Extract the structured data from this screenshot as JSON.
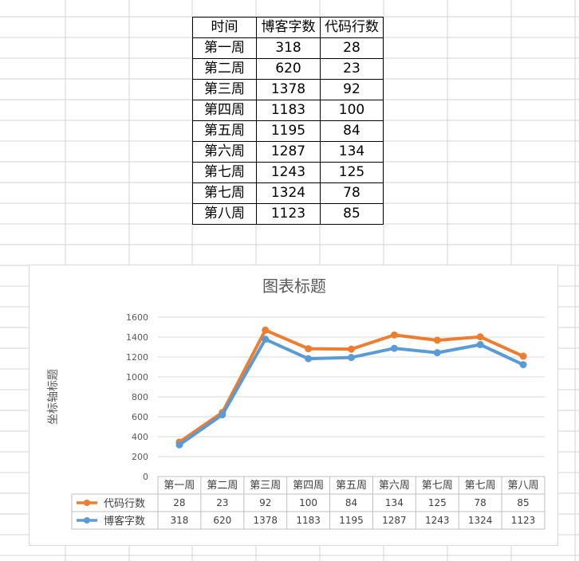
{
  "table": {
    "headers": [
      "时间",
      "博客字数",
      "代码行数"
    ],
    "rows": [
      [
        "第一周",
        "318",
        "28"
      ],
      [
        "第二周",
        "620",
        "23"
      ],
      [
        "第三周",
        "1378",
        "92"
      ],
      [
        "第四周",
        "1183",
        "100"
      ],
      [
        "第五周",
        "1195",
        "84"
      ],
      [
        "第六周",
        "1287",
        "134"
      ],
      [
        "第七周",
        "1243",
        "125"
      ],
      [
        "第七周",
        "1324",
        "78"
      ],
      [
        "第八周",
        "1123",
        "85"
      ]
    ]
  },
  "chart_data": {
    "type": "line",
    "stacked": true,
    "title": "图表标题",
    "xlabel": "",
    "ylabel": "坐标轴标题",
    "ylim": [
      0,
      1600
    ],
    "yticks": [
      0,
      200,
      400,
      600,
      800,
      1000,
      1200,
      1400,
      1600
    ],
    "grid": true,
    "legend": "data-table-below",
    "categories": [
      "第一周",
      "第二周",
      "第三周",
      "第四周",
      "第五周",
      "第六周",
      "第七周",
      "第七周",
      "第八周"
    ],
    "series": [
      {
        "name": "代码行数",
        "color": "#ed7d31",
        "values": [
          28,
          23,
          92,
          100,
          84,
          134,
          125,
          78,
          85
        ]
      },
      {
        "name": "博客字数",
        "color": "#5b9bd5",
        "values": [
          318,
          620,
          1378,
          1183,
          1195,
          1287,
          1243,
          1324,
          1123
        ]
      }
    ]
  }
}
